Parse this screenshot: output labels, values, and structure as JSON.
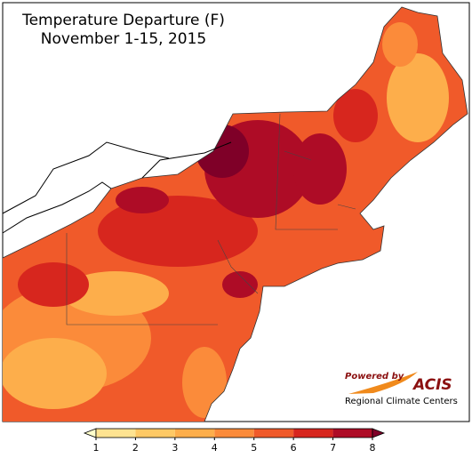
{
  "header": {
    "title": "Temperature Departure (F)",
    "subtitle": "November 1-15, 2015"
  },
  "colorbar": {
    "ticks": [
      1,
      2,
      3,
      4,
      5,
      6,
      7,
      8
    ],
    "colors": [
      "#ffffcc",
      "#fee391",
      "#fec965",
      "#fdae4b",
      "#fb8b3a",
      "#f05a2a",
      "#d7261e",
      "#ae0c26",
      "#7f0028"
    ]
  },
  "logo": {
    "powered": "Powered by",
    "name": "ACIS",
    "caption": "Regional Climate Centers"
  }
}
